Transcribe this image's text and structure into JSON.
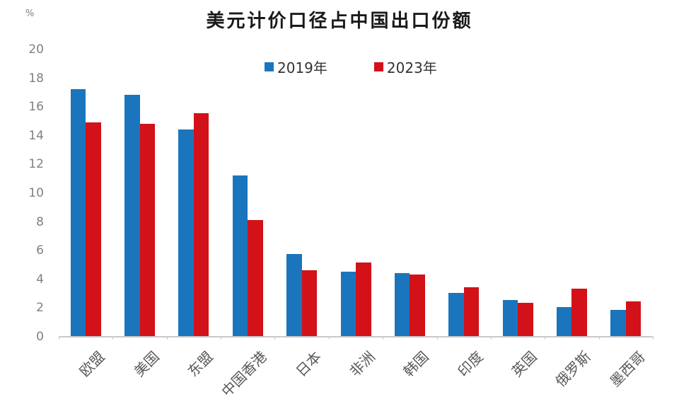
{
  "title": "美元计价口径占中国出口份额",
  "axis_unit": "%",
  "colors": {
    "series_2019": "#1B75BC",
    "series_2023": "#D31118",
    "axis_line": "#C9C9C9",
    "tick_label": "#808080",
    "category_label": "#595959",
    "title_text": "#1A1A1A"
  },
  "legend": [
    {
      "label": "2019年",
      "color": "#1B75BC"
    },
    {
      "label": "2023年",
      "color": "#D31118"
    }
  ],
  "chart_data": {
    "type": "bar",
    "title": "美元计价口径占中国出口份额",
    "unit": "%",
    "categories": [
      "欧盟",
      "美国",
      "东盟",
      "中国香港",
      "日本",
      "非洲",
      "韩国",
      "印度",
      "英国",
      "俄罗斯",
      "墨西哥"
    ],
    "series": [
      {
        "name": "2019年",
        "color": "#1B75BC",
        "values": [
          17.2,
          16.8,
          14.4,
          11.2,
          5.7,
          4.5,
          4.4,
          3.0,
          2.5,
          2.0,
          1.8
        ]
      },
      {
        "name": "2023年",
        "color": "#D31118",
        "values": [
          14.9,
          14.8,
          15.5,
          8.1,
          4.6,
          5.1,
          4.3,
          3.4,
          2.3,
          3.3,
          2.4
        ]
      }
    ],
    "xlabel": "",
    "ylabel": "%",
    "ylim": [
      0,
      20
    ],
    "ytick_step": 2,
    "grid": false,
    "legend_position": "top-center"
  }
}
